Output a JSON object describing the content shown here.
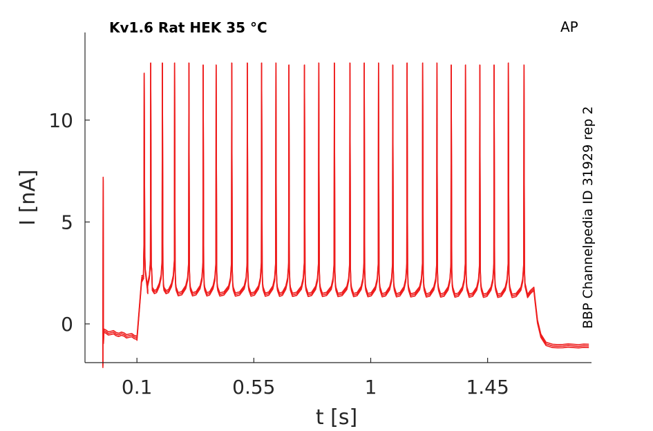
{
  "chart_data": {
    "type": "line",
    "title": "Kv1.6  Rat  HEK  35 °C",
    "tag": "AP",
    "side_label": "BBP Channelpedia ID 31929 rep 2",
    "xlabel": "t [s]",
    "ylabel": "I [nA]",
    "xlim": [
      -0.1,
      1.85
    ],
    "ylim": [
      -1.9,
      14.3
    ],
    "x_ticks": [
      0.1,
      0.55,
      1,
      1.45
    ],
    "x_tick_labels": [
      "0.1",
      "0.55",
      "1",
      "1.45"
    ],
    "y_ticks": [
      0,
      5,
      10
    ],
    "y_tick_labels": [
      "0",
      "5",
      "10"
    ],
    "grid": false,
    "line_color": "#ee1c1c",
    "spike_times": [
      0.128,
      0.153,
      0.198,
      0.245,
      0.3,
      0.355,
      0.405,
      0.465,
      0.525,
      0.58,
      0.635,
      0.685,
      0.745,
      0.8,
      0.86,
      0.92,
      0.975,
      1.03,
      1.085,
      1.14,
      1.2,
      1.255,
      1.31,
      1.365,
      1.42,
      1.475,
      1.53,
      1.59
    ],
    "spike_peaks": [
      12.3,
      12.8,
      12.8,
      12.8,
      12.8,
      12.7,
      12.7,
      12.8,
      12.8,
      12.8,
      12.8,
      12.7,
      12.7,
      12.8,
      12.8,
      12.8,
      12.8,
      12.8,
      12.7,
      12.8,
      12.8,
      12.8,
      12.7,
      12.7,
      12.7,
      12.7,
      12.8,
      12.7
    ],
    "series": [
      {
        "offset": 0.0
      },
      {
        "offset": -0.08
      },
      {
        "offset": -0.16
      }
    ],
    "events": {
      "stim_on": -0.03,
      "stim_on_peak": 7.2,
      "stim_on_trough": -2.0,
      "step_start": 0.1,
      "step_end": 1.63,
      "pre_level": -0.4,
      "plateau_level": 2.4,
      "baseline_level": 1.5,
      "post_level": -1.0
    }
  }
}
